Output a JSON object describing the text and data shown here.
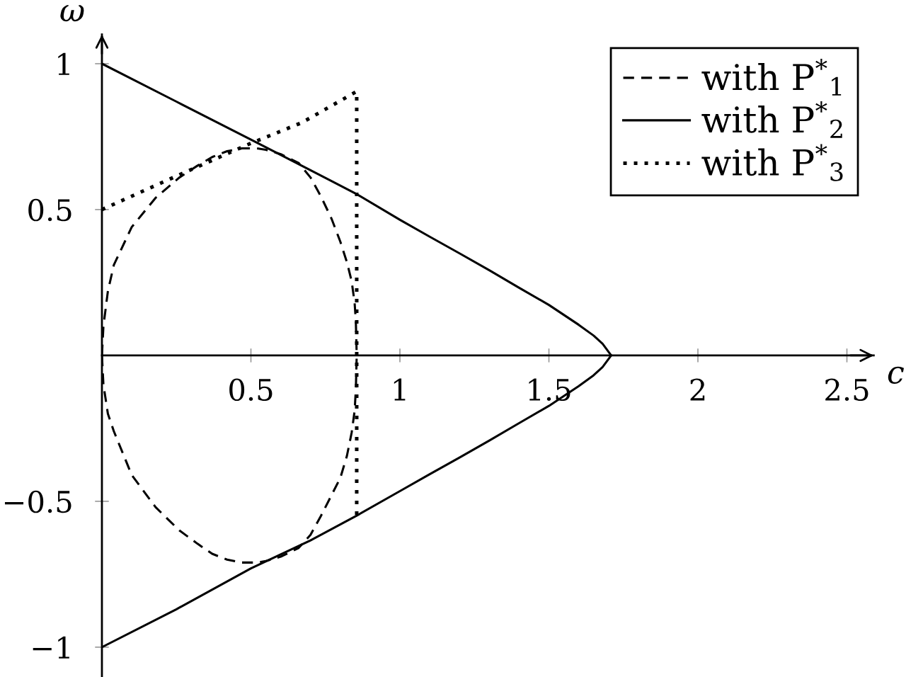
{
  "chart_data": {
    "type": "line",
    "xlabel": "c",
    "ylabel": "ω",
    "xlim": [
      0,
      2.59
    ],
    "ylim": [
      -1.1,
      1.1
    ],
    "xticks": [
      0.5,
      1,
      1.5,
      2,
      2.5
    ],
    "yticks": [
      {
        "value": -1,
        "label": "−1"
      },
      {
        "value": -0.5,
        "label": "−0.5"
      },
      0.5,
      1
    ],
    "legend": "top right",
    "series": [
      {
        "name": "with P$^{*}$$_{1}$",
        "color": "#000000",
        "line_style": "dashed",
        "x": [
          0,
          0.005,
          0.02,
          0.04,
          0.1,
          0.18,
          0.26,
          0.32,
          0.37,
          0.42,
          0.47,
          0.52,
          0.55,
          0.6,
          0.66,
          0.7,
          0.735,
          0.77,
          0.8,
          0.822,
          0.838,
          0.848,
          0.852,
          0.855
        ],
        "values": [
          0,
          0.1,
          0.22,
          0.31,
          0.44,
          0.54,
          0.61,
          0.65,
          0.68,
          0.7,
          0.71,
          0.71,
          0.705,
          0.69,
          0.66,
          0.61,
          0.545,
          0.47,
          0.39,
          0.32,
          0.255,
          0.18,
          0.12,
          0
        ]
      },
      {
        "name": "with P$^{*}$$_{2}$",
        "color": "#000000",
        "line_style": "solid",
        "x": [
          0,
          0.25,
          0.5,
          0.7,
          0.855,
          1.0,
          1.1,
          1.2,
          1.3,
          1.4,
          1.5,
          1.6,
          1.65,
          1.68,
          1.709
        ],
        "values": [
          1,
          0.87,
          0.74,
          0.635,
          0.553,
          0.465,
          0.407,
          0.35,
          0.292,
          0.232,
          0.173,
          0.105,
          0.068,
          0.04,
          0
        ]
      },
      {
        "name": "with P$^{*}$$_{3}$",
        "color": "#000000",
        "line_style": "dotted",
        "x": [
          0,
          0.244,
          0.497,
          0.671,
          0.855,
          0.855
        ],
        "values": [
          0.5,
          0.612,
          0.726,
          0.798,
          0.905,
          -0.55
        ]
      },
      {
        "color": "#000000",
        "line_style": "dashed",
        "x": [
          0,
          0.005,
          0.02,
          0.04,
          0.1,
          0.18,
          0.26,
          0.32,
          0.37,
          0.42,
          0.47,
          0.52,
          0.55,
          0.6,
          0.66,
          0.7,
          0.735,
          0.77,
          0.8,
          0.822,
          0.838,
          0.848,
          0.852,
          0.855
        ],
        "values": [
          0,
          -0.1,
          -0.2,
          -0.26,
          -0.41,
          -0.52,
          -0.6,
          -0.645,
          -0.68,
          -0.7,
          -0.71,
          -0.71,
          -0.705,
          -0.69,
          -0.66,
          -0.615,
          -0.55,
          -0.48,
          -0.42,
          -0.345,
          -0.265,
          -0.19,
          -0.12,
          0
        ]
      },
      {
        "color": "#000000",
        "line_style": "solid",
        "x": [
          0,
          0.25,
          0.5,
          0.7,
          0.855,
          1.0,
          1.1,
          1.2,
          1.3,
          1.4,
          1.5,
          1.6,
          1.65,
          1.68,
          1.709
        ],
        "values": [
          -1,
          -0.87,
          -0.73,
          -0.634,
          -0.549,
          -0.465,
          -0.407,
          -0.35,
          -0.292,
          -0.232,
          -0.173,
          -0.105,
          -0.068,
          -0.04,
          0
        ]
      }
    ]
  }
}
